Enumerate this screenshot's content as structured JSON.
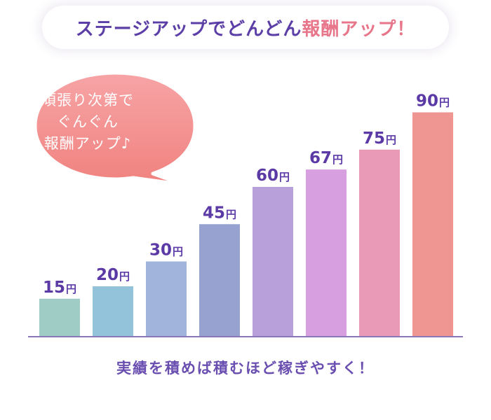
{
  "title": {
    "prefix": "ステージアップでどんどん",
    "accent": "報酬アップ！"
  },
  "bubble": {
    "lines": [
      "頑張り次第で",
      "ぐんぐん",
      "報酬アップ♪"
    ]
  },
  "footer": "実績を積めば積むほど稼ぎやすく！",
  "chart_data": {
    "type": "bar",
    "categories": [
      "",
      "",
      "",
      "",
      "",
      "",
      "",
      ""
    ],
    "values": [
      15,
      20,
      30,
      45,
      60,
      67,
      75,
      90
    ],
    "unit": "円",
    "title": "",
    "xlabel": "",
    "ylabel": "",
    "ylim": [
      0,
      100
    ],
    "grid": false,
    "colors": [
      "#9fcdc6",
      "#93c3da",
      "#a0b4dc",
      "#97a2d0",
      "#b8a0da",
      "#d79ee0",
      "#e99ab6",
      "#ef9693"
    ],
    "label_color": "#5b3aa6",
    "axis_color": "#8a78b8"
  }
}
